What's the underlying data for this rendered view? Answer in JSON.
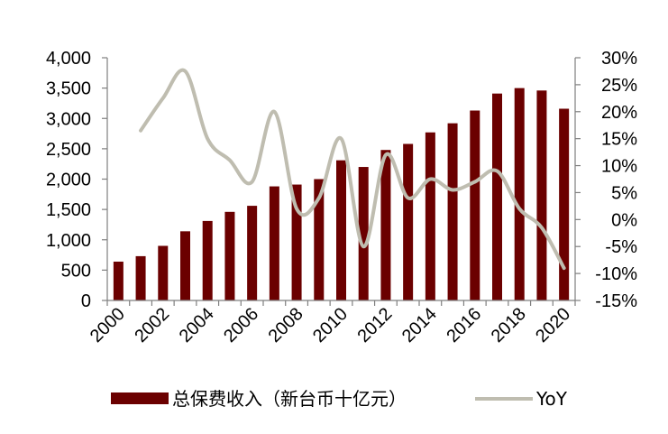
{
  "colors": {
    "bar": "#6b0000",
    "line": "#bfbdb0",
    "axis": "#7f7f7f",
    "text": "#000000"
  },
  "chart_data": {
    "type": "bar",
    "title": "",
    "xlabel": "",
    "ylabel": "",
    "categories": [
      2000,
      2001,
      2002,
      2003,
      2004,
      2005,
      2006,
      2007,
      2008,
      2009,
      2010,
      2011,
      2012,
      2013,
      2014,
      2015,
      2016,
      2017,
      2018,
      2019,
      2020
    ],
    "x_tick_labels": [
      "2000",
      "2002",
      "2004",
      "2006",
      "2008",
      "2010",
      "2012",
      "2014",
      "2016",
      "2018",
      "2020"
    ],
    "series": [
      {
        "name": "总保费收入（新台币十亿元）",
        "type": "bar",
        "axis": "left",
        "values": [
          640,
          730,
          900,
          1140,
          1310,
          1460,
          1560,
          1880,
          1910,
          2000,
          2310,
          2200,
          2480,
          2580,
          2770,
          2920,
          3130,
          3410,
          3500,
          3460,
          3160
        ]
      },
      {
        "name": "YoY",
        "type": "line",
        "axis": "right",
        "values": [
          null,
          16.5,
          22.5,
          27.5,
          15.0,
          11.0,
          7.0,
          20.0,
          2.0,
          4.0,
          15.0,
          -5.0,
          12.0,
          4.0,
          7.5,
          5.5,
          7.0,
          9.0,
          2.0,
          -1.5,
          -9.0
        ]
      }
    ],
    "y_left": {
      "min": 0,
      "max": 4000,
      "step": 500,
      "tick_labels": [
        "0",
        "500",
        "1,000",
        "1,500",
        "2,000",
        "2,500",
        "3,000",
        "3,500",
        "4,000"
      ]
    },
    "y_right": {
      "min": -15,
      "max": 30,
      "step": 5,
      "tick_labels": [
        "-15%",
        "-10%",
        "-5%",
        "0%",
        "5%",
        "10%",
        "15%",
        "20%",
        "25%",
        "30%"
      ]
    },
    "legend": {
      "position": "bottom",
      "items": [
        "总保费收入（新台币十亿元）",
        "YoY"
      ]
    },
    "grid": false
  }
}
